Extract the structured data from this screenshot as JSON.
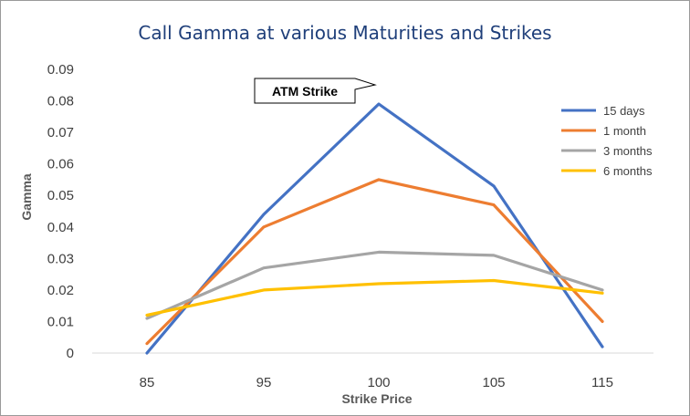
{
  "chart_data": {
    "type": "line",
    "title": "Call Gamma at various Maturities and Strikes",
    "xlabel": "Strike Price",
    "ylabel": "Gamma",
    "categories": [
      "85",
      "95",
      "100",
      "105",
      "115"
    ],
    "ylim": [
      0,
      0.09
    ],
    "yticks": [
      "0",
      "0.01",
      "0.02",
      "0.03",
      "0.04",
      "0.05",
      "0.06",
      "0.07",
      "0.08",
      "0.09"
    ],
    "grid": false,
    "legend_position": "right",
    "series": [
      {
        "name": "15 days",
        "color": "#4472c4",
        "values": [
          0.0,
          0.044,
          0.079,
          0.053,
          0.002
        ]
      },
      {
        "name": "1 month",
        "color": "#ed7d31",
        "values": [
          0.003,
          0.04,
          0.055,
          0.047,
          0.01
        ]
      },
      {
        "name": "3 months",
        "color": "#a5a5a5",
        "values": [
          0.011,
          0.027,
          0.032,
          0.031,
          0.02
        ]
      },
      {
        "name": "6 months",
        "color": "#ffc000",
        "values": [
          0.012,
          0.02,
          0.022,
          0.023,
          0.019
        ]
      }
    ],
    "annotation": {
      "text": "ATM Strike",
      "category": "100"
    }
  }
}
